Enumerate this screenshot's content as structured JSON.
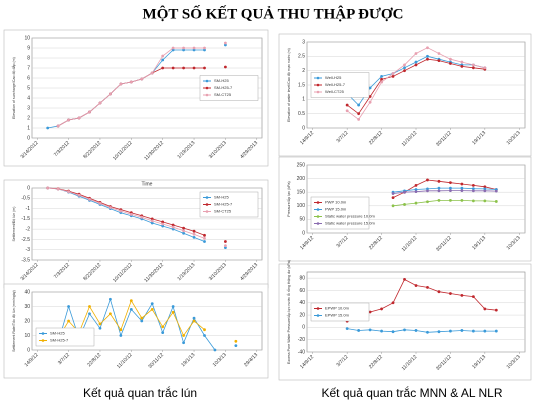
{
  "header": {
    "title": "MỘT SỐ KẾT QUẢ THU THẬP ĐƯỢC"
  },
  "captions": {
    "left": "Kết quả quan trắc lún",
    "right": "Kết quả quan trắc MNN & AL NLR"
  },
  "chart_data": [
    {
      "type": "line",
      "y_label": "Elevation of surcharge/Cao độ đắp (m)",
      "ylim": [
        0,
        10
      ],
      "yticks": [
        0,
        1,
        2,
        3,
        4,
        5,
        6,
        7,
        8,
        9,
        10
      ],
      "grid": true,
      "legend": "center-right",
      "categories": [
        "3/14/2012",
        null,
        null,
        "7/3/2012",
        null,
        null,
        "8/22/2012",
        null,
        null,
        "10/11/2012",
        null,
        null,
        "11/30/2012",
        null,
        null,
        "1/19/2013",
        null,
        null,
        "3/10/2013",
        null,
        null,
        "4/29/2013"
      ],
      "series": [
        {
          "name": "SM-H25",
          "color": "#3a9ad9",
          "values": [
            null,
            1,
            1.2,
            1.8,
            2,
            2.6,
            3.5,
            4.4,
            5.4,
            5.6,
            5.9,
            6.5,
            7.8,
            8.8,
            8.8,
            8.8,
            8.8,
            null,
            9.3,
            null,
            null,
            null
          ]
        },
        {
          "name": "SM-H25-7",
          "color": "#c0272d",
          "values": [
            null,
            null,
            1.2,
            1.8,
            2,
            2.6,
            3.5,
            4.4,
            5.4,
            5.6,
            5.9,
            6.5,
            7,
            7,
            7,
            7,
            7,
            null,
            7.1,
            null,
            null,
            null
          ]
        },
        {
          "name": "SM-CT25",
          "color": "#e8a0b0",
          "values": [
            null,
            null,
            1.2,
            1.8,
            2,
            2.6,
            3.5,
            4.4,
            5.4,
            5.6,
            5.9,
            6.5,
            8.2,
            9,
            9,
            9,
            9,
            null,
            9.5,
            null,
            null,
            null
          ]
        }
      ]
    },
    {
      "type": "line",
      "x_label": "Time",
      "y_label": "Settlement/Độ lún (m)",
      "ylim": [
        -3.5,
        0
      ],
      "yticks": [
        0,
        -0.5,
        -1,
        -1.5,
        -2,
        -2.5,
        -3,
        -3.5
      ],
      "grid": true,
      "legend": "upper-right",
      "categories": [
        "3/14/2012",
        null,
        null,
        "7/3/2012",
        null,
        null,
        "8/22/2012",
        null,
        null,
        "10/11/2012",
        null,
        null,
        "11/30/2012",
        null,
        null,
        "1/19/2013",
        null,
        null,
        "3/10/2013",
        null,
        null,
        "4/29/2013"
      ],
      "series": [
        {
          "name": "SM-H25",
          "color": "#3a9ad9",
          "values": [
            null,
            0,
            -0.05,
            -0.2,
            -0.4,
            -0.6,
            -0.8,
            -1,
            -1.2,
            -1.35,
            -1.5,
            -1.7,
            -1.85,
            -2,
            -2.2,
            -2.4,
            -2.6,
            null,
            -2.9,
            null,
            null,
            null
          ]
        },
        {
          "name": "SM-H25-7",
          "color": "#c0272d",
          "values": [
            null,
            0,
            -0.04,
            -0.15,
            -0.3,
            -0.5,
            -0.7,
            -0.9,
            -1.05,
            -1.2,
            -1.35,
            -1.5,
            -1.65,
            -1.8,
            -1.95,
            -2.1,
            -2.3,
            null,
            -2.6,
            null,
            null,
            null
          ]
        },
        {
          "name": "SM-CT25",
          "color": "#e8a0b0",
          "values": [
            null,
            0,
            -0.05,
            -0.18,
            -0.35,
            -0.55,
            -0.75,
            -0.95,
            -1.12,
            -1.28,
            -1.42,
            -1.6,
            -1.75,
            -1.9,
            -2.08,
            -2.25,
            -2.45,
            null,
            -2.8,
            null,
            null,
            null
          ]
        }
      ]
    },
    {
      "type": "line",
      "y_label": "Settlement Rate/Tốc độ lún (mm/ngày)",
      "ylim": [
        0,
        40
      ],
      "yticks": [
        0,
        10,
        20,
        30,
        40
      ],
      "grid": true,
      "legend": "lower-left",
      "categories": [
        "14/9/12",
        null,
        null,
        "3/7/12",
        null,
        null,
        "22/8/12",
        null,
        null,
        "11/10/12",
        null,
        null,
        "30/11/12",
        null,
        null,
        "19/1/13",
        null,
        null,
        "10/3/13",
        null,
        null,
        "29/4/13"
      ],
      "series": [
        {
          "name": "SM-H25",
          "color": "#3a9ad9",
          "values": [
            null,
            12,
            5,
            30,
            8,
            25,
            15,
            35,
            10,
            28,
            20,
            32,
            12,
            30,
            5,
            22,
            10,
            0,
            null,
            3,
            null,
            null
          ]
        },
        {
          "name": "SM-H25-7",
          "color": "#f0b000",
          "values": [
            null,
            null,
            8,
            20,
            12,
            30,
            18,
            25,
            14,
            34,
            22,
            28,
            16,
            26,
            10,
            20,
            14,
            null,
            null,
            6,
            null,
            null
          ]
        }
      ]
    },
    {
      "type": "line",
      "y_label": "Elevation of water level/Cao độ mực nước (m)",
      "ylim": [
        0,
        3
      ],
      "yticks": [
        0,
        0.5,
        1,
        1.5,
        2,
        2.5,
        3
      ],
      "grid": true,
      "legend": "center-left",
      "categories": [
        "14/9/12",
        null,
        null,
        "3/7/12",
        null,
        null,
        "22/8/12",
        null,
        null,
        "11/10/12",
        null,
        null,
        "30/11/12",
        null,
        null,
        "19/1/13",
        null,
        null,
        "10/3/13"
      ],
      "series": [
        {
          "name": "Well-H25",
          "color": "#3a9ad9",
          "values": [
            null,
            null,
            null,
            1.2,
            0.8,
            1.4,
            1.8,
            1.9,
            2.1,
            2.3,
            2.5,
            2.4,
            2.3,
            2.2,
            2.2,
            2.1,
            null,
            null,
            null
          ]
        },
        {
          "name": "Well-H25-7",
          "color": "#c0272d",
          "values": [
            null,
            null,
            null,
            0.8,
            0.5,
            1.1,
            1.7,
            1.8,
            2,
            2.2,
            2.4,
            2.35,
            2.25,
            2.15,
            2.1,
            2.05,
            null,
            null,
            null
          ]
        },
        {
          "name": "Well-CT25",
          "color": "#e8a0b0",
          "values": [
            null,
            null,
            null,
            0.6,
            0.3,
            0.9,
            1.6,
            1.9,
            2.2,
            2.6,
            2.8,
            2.6,
            2.4,
            2.3,
            2.2,
            2.1,
            null,
            null,
            null
          ]
        }
      ]
    },
    {
      "type": "line",
      "y_label": "Pressure/Áp lực (kPa)",
      "ylim": [
        0,
        250
      ],
      "yticks": [
        0,
        50,
        100,
        150,
        200,
        250
      ],
      "grid": true,
      "legend": "lower-left",
      "categories": [
        "14/9/12",
        null,
        null,
        "3/7/12",
        null,
        null,
        "22/8/12",
        null,
        null,
        "11/10/12",
        null,
        null,
        "30/11/12",
        null,
        null,
        "19/1/13",
        null,
        null,
        "10/3/13"
      ],
      "series": [
        {
          "name": "PWP 10.0m",
          "color": "#c0272d",
          "values": [
            null,
            null,
            null,
            null,
            null,
            null,
            null,
            130,
            150,
            175,
            195,
            190,
            185,
            180,
            175,
            170,
            160,
            null,
            null
          ]
        },
        {
          "name": "PWP 15.0m",
          "color": "#3a9ad9",
          "values": [
            null,
            null,
            null,
            null,
            null,
            null,
            null,
            150,
            155,
            160,
            162,
            165,
            165,
            165,
            163,
            162,
            160,
            null,
            null
          ]
        },
        {
          "name": "Static water pressure 10.0m",
          "color": "#8cc24a",
          "values": [
            null,
            null,
            null,
            null,
            null,
            null,
            null,
            100,
            105,
            110,
            115,
            120,
            120,
            120,
            118,
            118,
            116,
            null,
            null
          ]
        },
        {
          "name": "Static water pressure 15.0m",
          "color": "#8a6cb0",
          "values": [
            null,
            null,
            null,
            null,
            null,
            null,
            null,
            145,
            150,
            152,
            155,
            155,
            156,
            156,
            155,
            155,
            154,
            null,
            null
          ]
        }
      ]
    },
    {
      "type": "line",
      "y_label": "Excess Pore Water Pressure/Áp lực nước lỗ rỗng thặng dư (kPa)",
      "ylim": [
        -40,
        90
      ],
      "yticks": [
        -40,
        -20,
        0,
        20,
        40,
        60,
        80
      ],
      "grid": true,
      "legend": "center-left",
      "categories": [
        "14/9/12",
        null,
        null,
        "3/7/12",
        null,
        null,
        "22/8/12",
        null,
        null,
        "11/10/12",
        null,
        null,
        "30/11/12",
        null,
        null,
        "19/1/13",
        null,
        null,
        "10/3/13"
      ],
      "series": [
        {
          "name": "EPWP 10.0m",
          "color": "#c0272d",
          "values": [
            null,
            null,
            null,
            10,
            18,
            25,
            30,
            40,
            78,
            68,
            65,
            58,
            55,
            52,
            50,
            30,
            28,
            null,
            null
          ]
        },
        {
          "name": "EPWP 15.0m",
          "color": "#3a9ad9",
          "values": [
            null,
            null,
            null,
            -2,
            -5,
            -4,
            -6,
            -7,
            -4,
            -5,
            -8,
            -7,
            -6,
            -5,
            -6,
            -6,
            -6,
            null,
            null
          ]
        }
      ]
    }
  ]
}
